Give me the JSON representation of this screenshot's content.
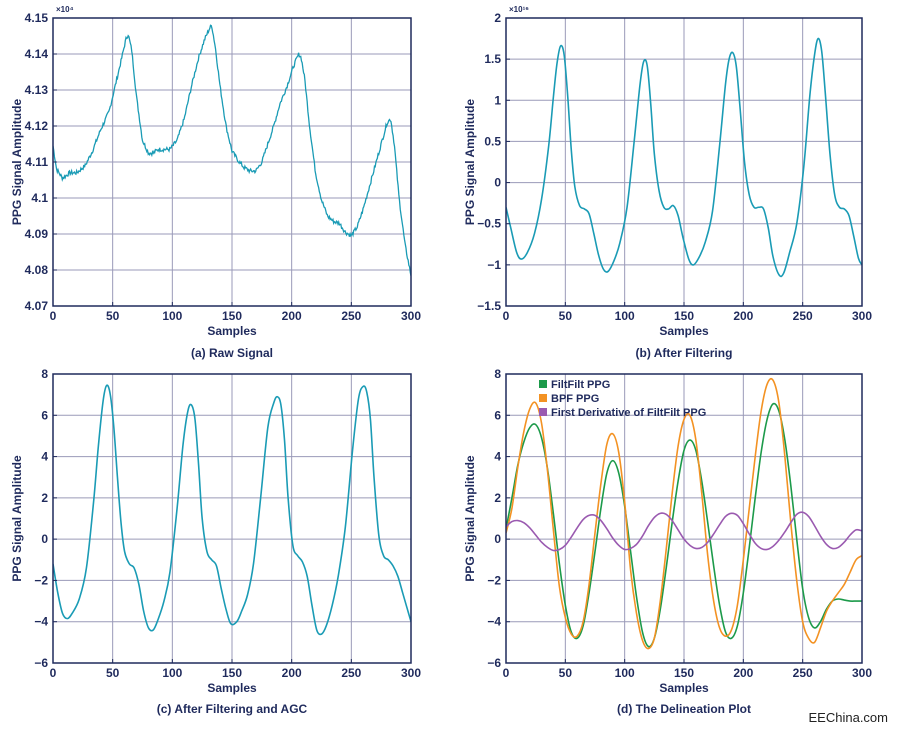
{
  "colors": {
    "axis": "#1f2a5c",
    "grid": "#9a9ab8",
    "teal": "#1a9bb5",
    "green": "#1c9a4a",
    "orange": "#f39223",
    "purple": "#9a5ab0"
  },
  "watermark": "EEChina.com",
  "chart_data": [
    {
      "type": "line",
      "caption": "(a) Raw Signal",
      "xlabel": "Samples",
      "ylabel": "PPG Signal Amplitude",
      "exponent_label": "×10⁴",
      "xlim": [
        0,
        300
      ],
      "ylim": [
        4.07,
        4.15
      ],
      "xticks": [
        "0",
        "50",
        "100",
        "150",
        "200",
        "250",
        "300"
      ],
      "yticks": [
        "4.07",
        "4.08",
        "4.09",
        "4.1",
        "4.11",
        "4.12",
        "4.13",
        "4.14",
        "4.15"
      ],
      "ytick_values": [
        4.07,
        4.08,
        4.09,
        4.1,
        4.11,
        4.12,
        4.13,
        4.14,
        4.15
      ],
      "grid": true,
      "noisy": true,
      "series": [
        {
          "color_key": "teal",
          "x": [
            0,
            3,
            8,
            14,
            20,
            27,
            33,
            40,
            47,
            52,
            57,
            61,
            63,
            66,
            70,
            75,
            80,
            84,
            88,
            93,
            98,
            104,
            110,
            116,
            122,
            127,
            131,
            133,
            136,
            140,
            145,
            150,
            155,
            160,
            165,
            170,
            175,
            180,
            185,
            190,
            196,
            202,
            206,
            208,
            211,
            215,
            220,
            225,
            230,
            235,
            240,
            245,
            250,
            255,
            260,
            265,
            270,
            275,
            280,
            283,
            286,
            290,
            295,
            300
          ],
          "y": [
            4.1145,
            4.108,
            4.1055,
            4.107,
            4.107,
            4.109,
            4.113,
            4.119,
            4.124,
            4.131,
            4.138,
            4.144,
            4.1455,
            4.141,
            4.128,
            4.116,
            4.1125,
            4.1125,
            4.1135,
            4.1135,
            4.1135,
            4.116,
            4.122,
            4.131,
            4.139,
            4.144,
            4.147,
            4.148,
            4.142,
            4.131,
            4.12,
            4.113,
            4.1105,
            4.1085,
            4.1075,
            4.1075,
            4.11,
            4.115,
            4.12,
            4.126,
            4.131,
            4.137,
            4.14,
            4.139,
            4.133,
            4.12,
            4.107,
            4.0995,
            4.095,
            4.0935,
            4.093,
            4.0905,
            4.0895,
            4.092,
            4.097,
            4.103,
            4.109,
            4.115,
            4.121,
            4.122,
            4.115,
            4.1,
            4.087,
            4.0785
          ]
        }
      ]
    },
    {
      "type": "line",
      "caption": "(b) After Filtering",
      "xlabel": "Samples",
      "ylabel": "PPG Signal Amplitude",
      "exponent_label": "×10¹⁶",
      "xlim": [
        0,
        300
      ],
      "ylim": [
        -1.5,
        2
      ],
      "xticks": [
        "0",
        "50",
        "100",
        "150",
        "200",
        "250",
        "300"
      ],
      "yticks": [
        "−1.5",
        "−1",
        "−0.5",
        "0",
        "0.5",
        "1",
        "1.5",
        "2"
      ],
      "ytick_values": [
        -1.5,
        -1,
        -0.5,
        0,
        0.5,
        1,
        1.5,
        2
      ],
      "grid": true,
      "series": [
        {
          "color_key": "teal",
          "x": [
            0,
            4,
            9,
            13,
            18,
            24,
            30,
            36,
            40,
            43,
            46,
            49,
            52,
            55,
            58,
            62,
            66,
            70,
            74,
            78,
            82,
            86,
            91,
            96,
            102,
            108,
            113,
            116,
            119,
            122,
            125,
            129,
            133,
            137,
            141,
            145,
            149,
            154,
            158,
            163,
            168,
            174,
            180,
            185,
            188,
            191,
            194,
            197,
            201,
            205,
            209,
            213,
            217,
            221,
            225,
            230,
            234,
            239,
            245,
            251,
            256,
            260,
            263,
            266,
            269,
            273,
            277,
            281,
            285,
            289,
            293,
            297,
            300
          ],
          "y": [
            -0.3,
            -0.55,
            -0.85,
            -0.93,
            -0.85,
            -0.62,
            -0.2,
            0.45,
            1.05,
            1.45,
            1.66,
            1.55,
            1.05,
            0.4,
            -0.05,
            -0.28,
            -0.32,
            -0.38,
            -0.62,
            -0.88,
            -1.05,
            -1.08,
            -0.95,
            -0.73,
            -0.3,
            0.5,
            1.2,
            1.47,
            1.42,
            0.95,
            0.35,
            -0.1,
            -0.3,
            -0.32,
            -0.28,
            -0.4,
            -0.66,
            -0.93,
            -1.0,
            -0.9,
            -0.72,
            -0.35,
            0.45,
            1.2,
            1.5,
            1.58,
            1.42,
            0.95,
            0.25,
            -0.15,
            -0.3,
            -0.3,
            -0.32,
            -0.55,
            -0.9,
            -1.12,
            -1.1,
            -0.85,
            -0.5,
            0.2,
            1.05,
            1.55,
            1.75,
            1.6,
            1.1,
            0.35,
            -0.15,
            -0.3,
            -0.32,
            -0.4,
            -0.65,
            -0.92,
            -1.0
          ]
        }
      ]
    },
    {
      "type": "line",
      "caption": "(c) After Filtering and AGC",
      "xlabel": "Samples",
      "ylabel": "PPG Signal Amplitude",
      "xlim": [
        0,
        300
      ],
      "ylim": [
        -6,
        8
      ],
      "xticks": [
        "0",
        "50",
        "100",
        "150",
        "200",
        "250",
        "300"
      ],
      "yticks": [
        "−6",
        "−4",
        "−2",
        "0",
        "2",
        "4",
        "6",
        "8"
      ],
      "ytick_values": [
        -6,
        -4,
        -2,
        0,
        2,
        4,
        6,
        8
      ],
      "grid": true,
      "series": [
        {
          "color_key": "teal",
          "x": [
            0,
            4,
            8,
            12,
            16,
            22,
            28,
            34,
            38,
            42,
            45,
            48,
            51,
            54,
            57,
            60,
            64,
            68,
            72,
            76,
            80,
            84,
            88,
            93,
            98,
            104,
            109,
            113,
            116,
            119,
            122,
            125,
            129,
            133,
            137,
            141,
            145,
            149,
            154,
            158,
            163,
            168,
            174,
            180,
            185,
            188,
            191,
            194,
            197,
            201,
            205,
            209,
            213,
            217,
            221,
            225,
            229,
            234,
            239,
            245,
            251,
            256,
            260,
            263,
            266,
            269,
            273,
            277,
            281,
            285,
            289,
            293,
            297,
            300
          ],
          "y": [
            -1.2,
            -2.6,
            -3.6,
            -3.85,
            -3.6,
            -2.9,
            -1.4,
            1.8,
            4.5,
            6.7,
            7.45,
            7.0,
            5.4,
            3.0,
            0.8,
            -0.6,
            -1.2,
            -1.4,
            -2.2,
            -3.5,
            -4.3,
            -4.4,
            -3.9,
            -3.0,
            -1.6,
            1.5,
            4.6,
            6.2,
            6.5,
            5.8,
            3.6,
            1.0,
            -0.6,
            -1.0,
            -1.3,
            -2.4,
            -3.4,
            -4.1,
            -4.0,
            -3.5,
            -2.7,
            -1.2,
            2.0,
            5.4,
            6.6,
            6.9,
            6.5,
            4.8,
            2.0,
            -0.3,
            -0.8,
            -1.1,
            -1.8,
            -3.2,
            -4.4,
            -4.6,
            -4.2,
            -3.2,
            -1.8,
            0.6,
            4.3,
            6.8,
            7.4,
            7.1,
            5.8,
            3.0,
            0.2,
            -0.8,
            -1.0,
            -1.3,
            -1.8,
            -2.6,
            -3.4,
            -4.0
          ]
        }
      ]
    },
    {
      "type": "line",
      "caption": "(d) The Delineation Plot",
      "xlabel": "Samples",
      "ylabel": "PPG Signal Amplitude",
      "xlim": [
        0,
        300
      ],
      "ylim": [
        -6,
        8
      ],
      "xticks": [
        "0",
        "50",
        "100",
        "150",
        "200",
        "250",
        "300"
      ],
      "yticks": [
        "−6",
        "−4",
        "−2",
        "0",
        "2",
        "4",
        "6",
        "8"
      ],
      "ytick_values": [
        -6,
        -4,
        -2,
        0,
        2,
        4,
        6,
        8
      ],
      "grid": true,
      "legend_placement": "top-left",
      "series": [
        {
          "name": "FiltFilt PPG",
          "color_key": "green",
          "x": [
            0,
            5,
            10,
            15,
            20,
            25,
            30,
            35,
            40,
            45,
            50,
            55,
            60,
            65,
            70,
            75,
            80,
            85,
            90,
            95,
            100,
            105,
            110,
            115,
            120,
            125,
            130,
            135,
            140,
            145,
            150,
            155,
            160,
            165,
            170,
            175,
            180,
            185,
            190,
            195,
            200,
            205,
            210,
            215,
            220,
            225,
            230,
            235,
            240,
            245,
            250,
            255,
            260,
            265,
            270,
            275,
            280,
            285,
            290,
            295,
            300
          ],
          "y": [
            0.5,
            2.0,
            3.6,
            4.7,
            5.4,
            5.55,
            4.9,
            3.4,
            1.2,
            -1.2,
            -3.2,
            -4.5,
            -4.8,
            -4.2,
            -2.6,
            -0.6,
            1.5,
            3.2,
            3.8,
            3.2,
            1.6,
            -0.6,
            -2.8,
            -4.5,
            -5.2,
            -4.8,
            -3.4,
            -1.4,
            0.8,
            2.8,
            4.3,
            4.8,
            4.3,
            2.8,
            0.8,
            -1.3,
            -3.2,
            -4.5,
            -4.8,
            -4.2,
            -2.6,
            -0.4,
            2.0,
            4.2,
            5.8,
            6.55,
            6.2,
            4.8,
            2.6,
            0.0,
            -2.4,
            -3.8,
            -4.3,
            -4.0,
            -3.4,
            -3.0,
            -2.9,
            -2.95,
            -3.0,
            -3.0,
            -3.0
          ]
        },
        {
          "name": "BPF PPG",
          "color_key": "orange",
          "x": [
            0,
            5,
            10,
            15,
            20,
            25,
            30,
            35,
            40,
            45,
            50,
            55,
            60,
            65,
            70,
            75,
            80,
            85,
            90,
            95,
            100,
            105,
            110,
            115,
            120,
            125,
            130,
            135,
            140,
            145,
            150,
            155,
            160,
            165,
            170,
            175,
            180,
            185,
            190,
            195,
            200,
            205,
            210,
            215,
            220,
            225,
            230,
            235,
            240,
            245,
            250,
            255,
            260,
            265,
            270,
            275,
            280,
            285,
            290,
            295,
            300
          ],
          "y": [
            0.3,
            1.5,
            3.5,
            5.2,
            6.3,
            6.6,
            5.6,
            3.3,
            0.4,
            -2.3,
            -3.8,
            -4.6,
            -4.7,
            -4.0,
            -2.2,
            0.3,
            2.7,
            4.6,
            5.1,
            4.2,
            1.8,
            -1.5,
            -3.6,
            -4.9,
            -5.3,
            -4.8,
            -3.0,
            -0.5,
            2.2,
            4.5,
            5.8,
            6.0,
            4.8,
            2.2,
            -0.8,
            -3.0,
            -4.3,
            -4.7,
            -4.4,
            -3.2,
            -1.0,
            1.5,
            4.0,
            6.2,
            7.5,
            7.7,
            6.6,
            4.0,
            0.8,
            -2.0,
            -4.0,
            -4.8,
            -5.0,
            -4.3,
            -3.5,
            -3.0,
            -2.6,
            -2.2,
            -1.6,
            -1.0,
            -0.8
          ]
        },
        {
          "name": "First Derivative of FiltFilt PPG",
          "color_key": "purple",
          "x": [
            0,
            5,
            10,
            15,
            20,
            25,
            30,
            35,
            40,
            45,
            50,
            55,
            60,
            65,
            70,
            75,
            80,
            85,
            90,
            95,
            100,
            105,
            110,
            115,
            120,
            125,
            130,
            135,
            140,
            145,
            150,
            155,
            160,
            165,
            170,
            175,
            180,
            185,
            190,
            195,
            200,
            205,
            210,
            215,
            220,
            225,
            230,
            235,
            240,
            245,
            250,
            255,
            260,
            265,
            270,
            275,
            280,
            285,
            290,
            295,
            300
          ],
          "y": [
            0.6,
            0.85,
            0.9,
            0.8,
            0.55,
            0.2,
            -0.15,
            -0.4,
            -0.55,
            -0.5,
            -0.3,
            0.1,
            0.55,
            0.95,
            1.15,
            1.15,
            0.9,
            0.5,
            0.05,
            -0.3,
            -0.5,
            -0.45,
            -0.25,
            0.15,
            0.65,
            1.05,
            1.25,
            1.2,
            0.9,
            0.45,
            0.0,
            -0.3,
            -0.45,
            -0.4,
            -0.15,
            0.25,
            0.7,
            1.1,
            1.25,
            1.15,
            0.75,
            0.25,
            -0.2,
            -0.45,
            -0.5,
            -0.35,
            -0.05,
            0.35,
            0.8,
            1.2,
            1.3,
            1.1,
            0.65,
            0.15,
            -0.25,
            -0.45,
            -0.4,
            -0.15,
            0.2,
            0.45,
            0.4
          ]
        }
      ]
    }
  ]
}
